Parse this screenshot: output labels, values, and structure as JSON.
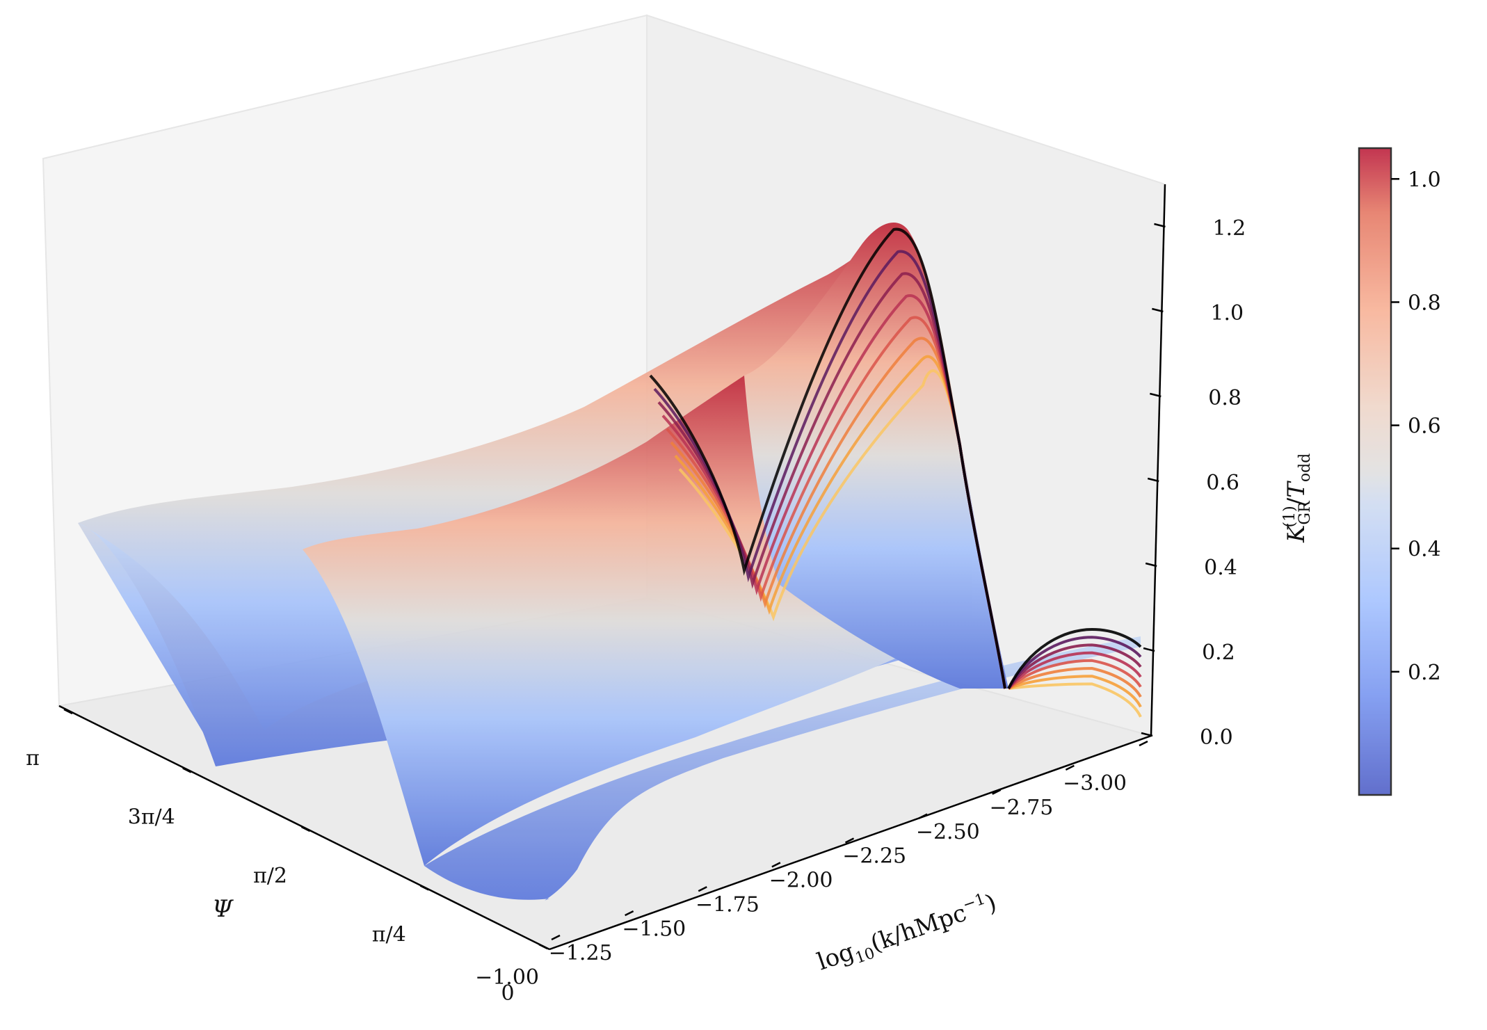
{
  "chart_data": {
    "type": "surface3d",
    "title": "",
    "xlabel": "log10(k/hMpc^-1)",
    "ylabel": "Ψ",
    "zlabel": "K_GR^(1)/T_odd",
    "x_ticks": [
      "−1.00",
      "−1.25",
      "−1.50",
      "−1.75",
      "−2.00",
      "−2.25",
      "−2.50",
      "−2.75",
      "−3.00"
    ],
    "x_range": [
      -1.0,
      -3.0
    ],
    "y_ticks": [
      "0",
      "π/4",
      "π/2",
      "3π/4",
      "π"
    ],
    "y_range": [
      0,
      3.14159
    ],
    "z_ticks": [
      "0.0",
      "0.2",
      "0.4",
      "0.6",
      "0.8",
      "1.0",
      "1.2"
    ],
    "z_range": [
      0.0,
      1.3
    ],
    "colormap": "coolwarm",
    "colorbar": {
      "ticks": [
        "0.2",
        "0.4",
        "0.6",
        "0.8",
        "1.0"
      ],
      "range": [
        0.0,
        1.05
      ]
    },
    "surface_summary": {
      "peak_value": 1.28,
      "peak_at": {
        "log10k": -2.3,
        "psi": "π/2"
      },
      "curves_count": 8,
      "curve_colors": [
        "#000000",
        "#5b1a5e",
        "#8b1f4f",
        "#b83253",
        "#d9534a",
        "#ee7f3c",
        "#f6a03a",
        "#fac563"
      ]
    },
    "colors": {
      "low": "#3b4cc0",
      "mid": "#dddddd",
      "high": "#b40426",
      "pane": "#f2f2f2"
    }
  }
}
